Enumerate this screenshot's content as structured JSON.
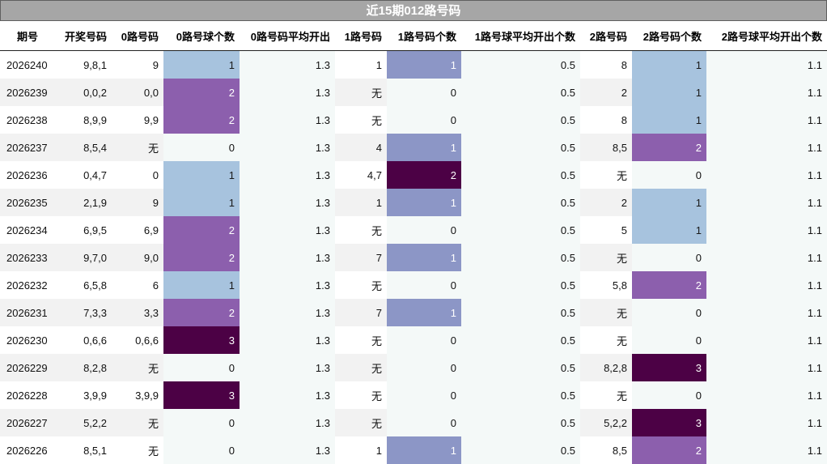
{
  "title": "近15期012路号码",
  "headers": [
    "期号",
    "开奖号码",
    "0路号码",
    "0路号球个数",
    "0路号码平均开出",
    "1路号码",
    "1路号码个数",
    "1路号球平均开出个数",
    "2路号码",
    "2路号码个数",
    "2路号球平均开出个数"
  ],
  "rows": [
    [
      "2026240",
      "9,8,1",
      "9",
      "1",
      "1.3",
      "1",
      "1",
      "0.5",
      "8",
      "1",
      "1.1"
    ],
    [
      "2026239",
      "0,0,2",
      "0,0",
      "2",
      "1.3",
      "无",
      "0",
      "0.5",
      "2",
      "1",
      "1.1"
    ],
    [
      "2026238",
      "8,9,9",
      "9,9",
      "2",
      "1.3",
      "无",
      "0",
      "0.5",
      "8",
      "1",
      "1.1"
    ],
    [
      "2026237",
      "8,5,4",
      "无",
      "0",
      "1.3",
      "4",
      "1",
      "0.5",
      "8,5",
      "2",
      "1.1"
    ],
    [
      "2026236",
      "0,4,7",
      "0",
      "1",
      "1.3",
      "4,7",
      "2",
      "0.5",
      "无",
      "0",
      "1.1"
    ],
    [
      "2026235",
      "2,1,9",
      "9",
      "1",
      "1.3",
      "1",
      "1",
      "0.5",
      "2",
      "1",
      "1.1"
    ],
    [
      "2026234",
      "6,9,5",
      "6,9",
      "2",
      "1.3",
      "无",
      "0",
      "0.5",
      "5",
      "1",
      "1.1"
    ],
    [
      "2026233",
      "9,7,0",
      "9,0",
      "2",
      "1.3",
      "7",
      "1",
      "0.5",
      "无",
      "0",
      "1.1"
    ],
    [
      "2026232",
      "6,5,8",
      "6",
      "1",
      "1.3",
      "无",
      "0",
      "0.5",
      "5,8",
      "2",
      "1.1"
    ],
    [
      "2026231",
      "7,3,3",
      "3,3",
      "2",
      "1.3",
      "7",
      "1",
      "0.5",
      "无",
      "0",
      "1.1"
    ],
    [
      "2026230",
      "0,6,6",
      "0,6,6",
      "3",
      "1.3",
      "无",
      "0",
      "0.5",
      "无",
      "0",
      "1.1"
    ],
    [
      "2026229",
      "8,2,8",
      "无",
      "0",
      "1.3",
      "无",
      "0",
      "0.5",
      "8,2,8",
      "3",
      "1.1"
    ],
    [
      "2026228",
      "3,9,9",
      "3,9,9",
      "3",
      "1.3",
      "无",
      "0",
      "0.5",
      "无",
      "0",
      "1.1"
    ],
    [
      "2026227",
      "5,2,2",
      "无",
      "0",
      "1.3",
      "无",
      "0",
      "0.5",
      "5,2,2",
      "3",
      "1.1"
    ],
    [
      "2026226",
      "8,5,1",
      "无",
      "0",
      "1.3",
      "1",
      "1",
      "0.5",
      "8,5",
      "2",
      "1.1"
    ]
  ],
  "colors": {
    "title_bg": "#a6a6a6",
    "zero_route_1": "#a7c3de",
    "zero_route_2": "#8c5fad",
    "zero_route_3": "#4c0145",
    "one_route_1": "#8c96c6",
    "one_route_2": "#4c0145",
    "avg_bg": "#f4f9f8",
    "stripe_bg": "#f2f2f2"
  }
}
